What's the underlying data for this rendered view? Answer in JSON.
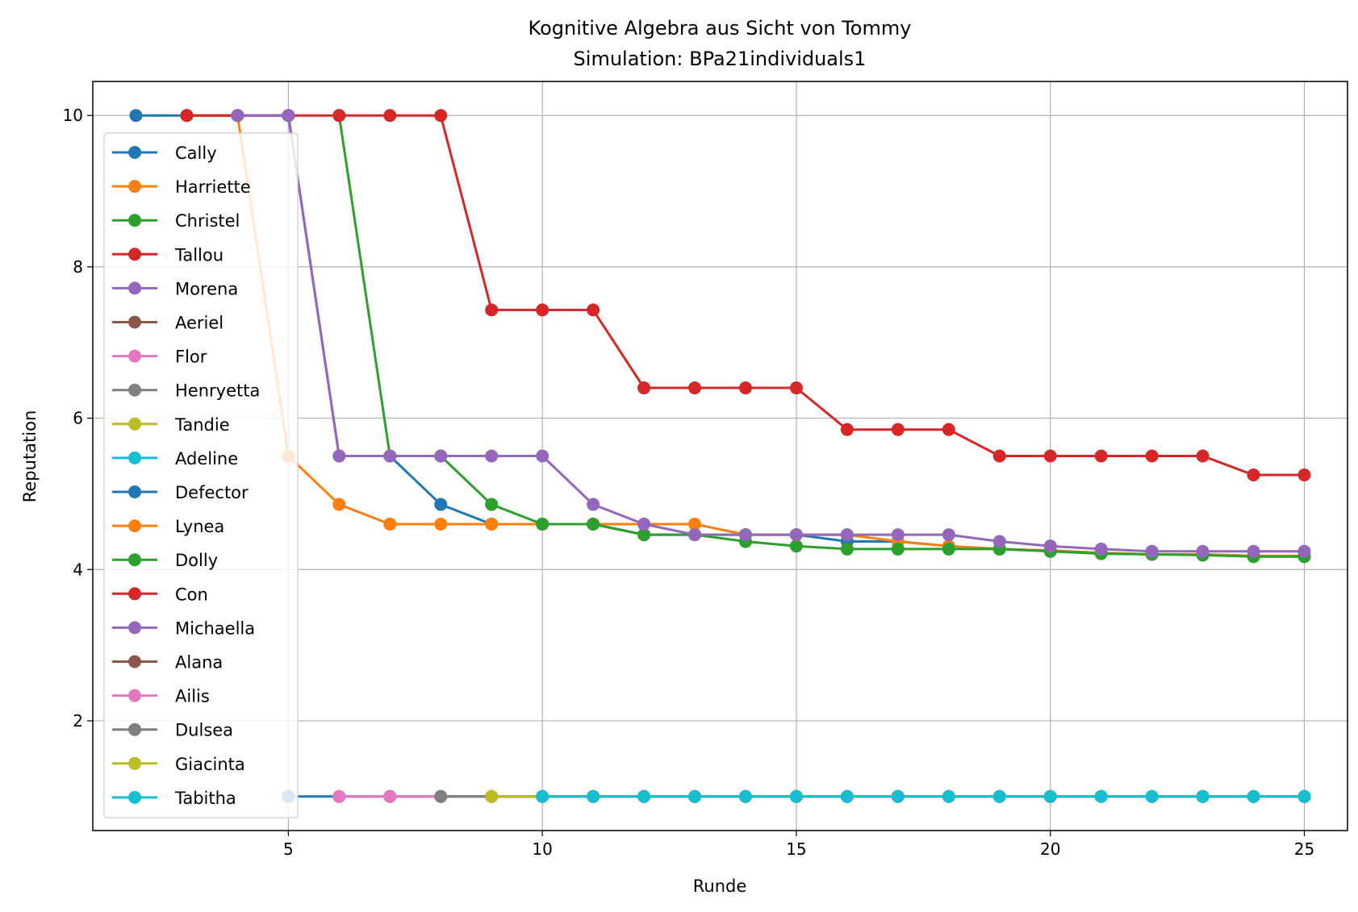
{
  "chart_data": {
    "type": "line",
    "title": "Kognitive Algebra aus Sicht von Tommy",
    "subtitle": "Simulation: BPa21individuals1",
    "xlabel": "Runde",
    "ylabel": "Reputation",
    "xlim": [
      1.15,
      25.85
    ],
    "ylim": [
      0.55,
      10.45
    ],
    "xticks": [
      5,
      10,
      15,
      20,
      25
    ],
    "yticks": [
      2,
      4,
      6,
      8,
      10
    ],
    "grid": true,
    "legend_position": "left",
    "series": [
      {
        "name": "Cally",
        "color": "#1f77b4",
        "points": [
          [
            2,
            10
          ],
          [
            3,
            10
          ],
          [
            4,
            10
          ],
          [
            5,
            10
          ],
          [
            6,
            5.5
          ],
          [
            7,
            5.5
          ],
          [
            8,
            4.86
          ],
          [
            9,
            4.6
          ],
          [
            10,
            4.6
          ],
          [
            11,
            4.6
          ],
          [
            12,
            4.46
          ],
          [
            13,
            4.46
          ],
          [
            14,
            4.46
          ],
          [
            15,
            4.46
          ],
          [
            16,
            4.37
          ],
          [
            17,
            4.37
          ],
          [
            18,
            4.31
          ],
          [
            19,
            4.27
          ],
          [
            20,
            4.25
          ],
          [
            21,
            4.22
          ],
          [
            22,
            4.2
          ],
          [
            23,
            4.2
          ],
          [
            24,
            4.18
          ],
          [
            25,
            4.18
          ]
        ]
      },
      {
        "name": "Harriette",
        "color": "#ff7f0e",
        "points": [
          [
            3,
            10
          ],
          [
            4,
            10
          ],
          [
            5,
            5.5
          ],
          [
            6,
            4.86
          ],
          [
            7,
            4.6
          ],
          [
            8,
            4.6
          ],
          [
            9,
            4.6
          ],
          [
            10,
            4.6
          ],
          [
            11,
            4.6
          ],
          [
            12,
            4.6
          ],
          [
            13,
            4.6
          ],
          [
            14,
            4.46
          ],
          [
            15,
            4.46
          ],
          [
            16,
            4.46
          ],
          [
            17,
            4.37
          ],
          [
            18,
            4.31
          ],
          [
            19,
            4.27
          ],
          [
            20,
            4.25
          ],
          [
            21,
            4.22
          ],
          [
            22,
            4.2
          ],
          [
            23,
            4.2
          ],
          [
            24,
            4.18
          ],
          [
            25,
            4.18
          ]
        ]
      },
      {
        "name": "Christel",
        "color": "#2ca02c",
        "points": [
          [
            6,
            10
          ],
          [
            7,
            5.5
          ],
          [
            8,
            5.5
          ],
          [
            9,
            4.86
          ],
          [
            10,
            4.6
          ],
          [
            11,
            4.6
          ],
          [
            12,
            4.46
          ],
          [
            13,
            4.46
          ],
          [
            14,
            4.37
          ],
          [
            15,
            4.31
          ],
          [
            16,
            4.27
          ],
          [
            17,
            4.27
          ],
          [
            18,
            4.27
          ],
          [
            19,
            4.27
          ],
          [
            20,
            4.24
          ],
          [
            21,
            4.21
          ],
          [
            22,
            4.2
          ],
          [
            23,
            4.19
          ],
          [
            24,
            4.17
          ],
          [
            25,
            4.17
          ]
        ]
      },
      {
        "name": "Tallou",
        "color": "#d62728",
        "points": [
          [
            3,
            10
          ],
          [
            4,
            10
          ],
          [
            5,
            10
          ],
          [
            6,
            10
          ],
          [
            7,
            10
          ],
          [
            8,
            10
          ],
          [
            9,
            7.43
          ],
          [
            10,
            7.43
          ],
          [
            11,
            7.43
          ],
          [
            12,
            6.4
          ],
          [
            13,
            6.4
          ],
          [
            14,
            6.4
          ],
          [
            15,
            6.4
          ],
          [
            16,
            5.85
          ],
          [
            17,
            5.85
          ],
          [
            18,
            5.85
          ],
          [
            19,
            5.5
          ],
          [
            20,
            5.5
          ],
          [
            21,
            5.5
          ],
          [
            22,
            5.5
          ],
          [
            23,
            5.5
          ],
          [
            24,
            5.25
          ],
          [
            25,
            5.25
          ]
        ]
      },
      {
        "name": "Morena",
        "color": "#9467bd",
        "points": [
          [
            4,
            10
          ],
          [
            5,
            10
          ],
          [
            6,
            5.5
          ],
          [
            7,
            5.5
          ],
          [
            8,
            5.5
          ],
          [
            9,
            5.5
          ],
          [
            10,
            5.5
          ],
          [
            11,
            4.86
          ],
          [
            12,
            4.6
          ],
          [
            13,
            4.46
          ],
          [
            14,
            4.46
          ],
          [
            15,
            4.46
          ],
          [
            16,
            4.46
          ],
          [
            17,
            4.46
          ],
          [
            18,
            4.46
          ],
          [
            19,
            4.37
          ],
          [
            20,
            4.31
          ],
          [
            21,
            4.27
          ],
          [
            22,
            4.24
          ],
          [
            23,
            4.24
          ],
          [
            24,
            4.24
          ],
          [
            25,
            4.24
          ]
        ]
      },
      {
        "name": "Aeriel",
        "color": "#8c564b",
        "points": []
      },
      {
        "name": "Flor",
        "color": "#e377c2",
        "points": []
      },
      {
        "name": "Henryetta",
        "color": "#7f7f7f",
        "points": []
      },
      {
        "name": "Tandie",
        "color": "#bcbd22",
        "points": []
      },
      {
        "name": "Adeline",
        "color": "#17becf",
        "points": []
      },
      {
        "name": "Defector",
        "color": "#1f77b4",
        "points": [
          [
            5,
            1
          ],
          [
            6,
            1
          ],
          [
            7,
            1
          ],
          [
            8,
            1
          ],
          [
            9,
            1
          ],
          [
            10,
            1
          ],
          [
            11,
            1
          ],
          [
            12,
            1
          ],
          [
            13,
            1
          ],
          [
            14,
            1
          ],
          [
            15,
            1
          ],
          [
            16,
            1
          ],
          [
            17,
            1
          ],
          [
            18,
            1
          ],
          [
            19,
            1
          ],
          [
            20,
            1
          ],
          [
            21,
            1
          ],
          [
            22,
            1
          ],
          [
            23,
            1
          ],
          [
            24,
            1
          ],
          [
            25,
            1
          ]
        ]
      },
      {
        "name": "Lynea",
        "color": "#ff7f0e",
        "points": []
      },
      {
        "name": "Dolly",
        "color": "#2ca02c",
        "points": []
      },
      {
        "name": "Con",
        "color": "#d62728",
        "points": []
      },
      {
        "name": "Michaella",
        "color": "#9467bd",
        "points": []
      },
      {
        "name": "Alana",
        "color": "#8c564b",
        "points": []
      },
      {
        "name": "Ailis",
        "color": "#e377c2",
        "points": [
          [
            6,
            1
          ],
          [
            7,
            1
          ],
          [
            8,
            1
          ],
          [
            9,
            1
          ],
          [
            10,
            1
          ],
          [
            11,
            1
          ],
          [
            12,
            1
          ],
          [
            13,
            1
          ],
          [
            14,
            1
          ],
          [
            15,
            1
          ],
          [
            16,
            1
          ],
          [
            17,
            1
          ],
          [
            18,
            1
          ],
          [
            19,
            1
          ],
          [
            20,
            1
          ],
          [
            21,
            1
          ],
          [
            22,
            1
          ],
          [
            23,
            1
          ],
          [
            24,
            1
          ],
          [
            25,
            1
          ]
        ]
      },
      {
        "name": "Dulsea",
        "color": "#7f7f7f",
        "points": [
          [
            8,
            1
          ],
          [
            9,
            1
          ],
          [
            10,
            1
          ],
          [
            11,
            1
          ],
          [
            12,
            1
          ],
          [
            13,
            1
          ],
          [
            14,
            1
          ],
          [
            15,
            1
          ],
          [
            16,
            1
          ],
          [
            17,
            1
          ],
          [
            18,
            1
          ],
          [
            19,
            1
          ],
          [
            20,
            1
          ],
          [
            21,
            1
          ],
          [
            22,
            1
          ],
          [
            23,
            1
          ],
          [
            24,
            1
          ],
          [
            25,
            1
          ]
        ]
      },
      {
        "name": "Giacinta",
        "color": "#bcbd22",
        "points": [
          [
            9,
            1
          ],
          [
            10,
            1
          ],
          [
            11,
            1
          ],
          [
            12,
            1
          ],
          [
            13,
            1
          ],
          [
            14,
            1
          ],
          [
            15,
            1
          ],
          [
            16,
            1
          ],
          [
            17,
            1
          ],
          [
            18,
            1
          ],
          [
            19,
            1
          ],
          [
            20,
            1
          ],
          [
            21,
            1
          ],
          [
            22,
            1
          ],
          [
            23,
            1
          ],
          [
            24,
            1
          ],
          [
            25,
            1
          ]
        ]
      },
      {
        "name": "Tabitha",
        "color": "#17becf",
        "points": [
          [
            10,
            1
          ],
          [
            11,
            1
          ],
          [
            12,
            1
          ],
          [
            13,
            1
          ],
          [
            14,
            1
          ],
          [
            15,
            1
          ],
          [
            16,
            1
          ],
          [
            17,
            1
          ],
          [
            18,
            1
          ],
          [
            19,
            1
          ],
          [
            20,
            1
          ],
          [
            21,
            1
          ],
          [
            22,
            1
          ],
          [
            23,
            1
          ],
          [
            24,
            1
          ],
          [
            25,
            1
          ]
        ]
      }
    ]
  }
}
